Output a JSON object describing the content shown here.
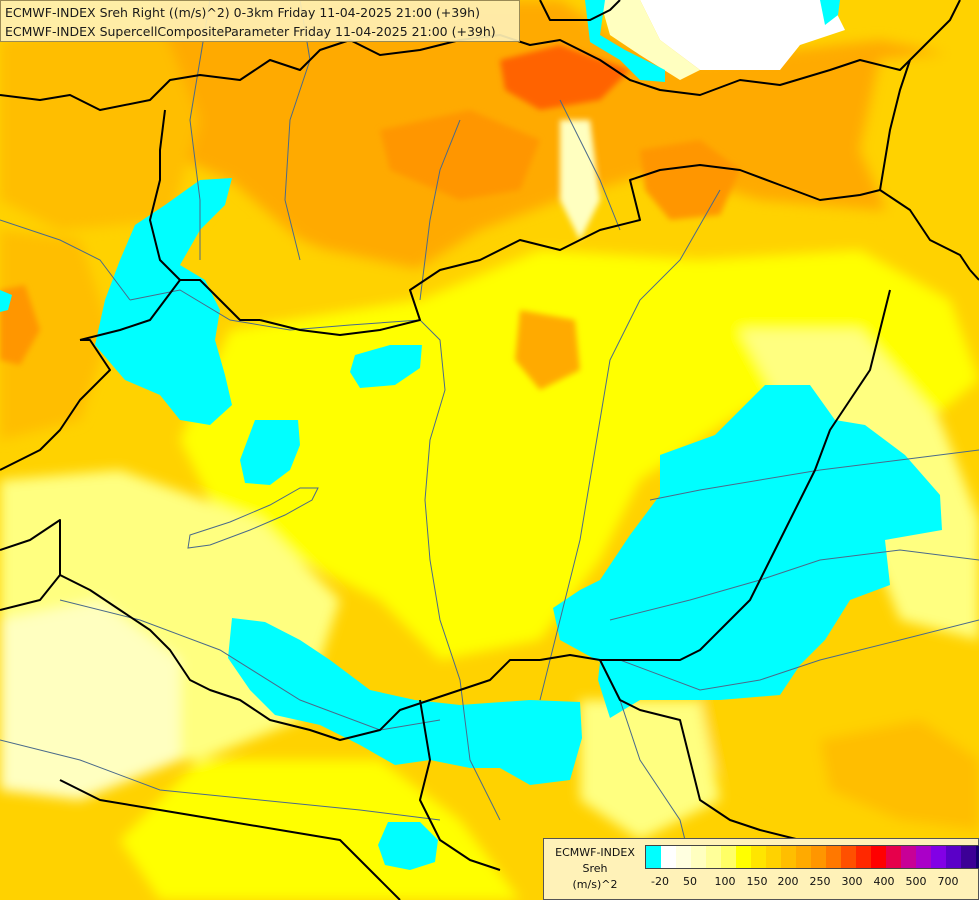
{
  "header": {
    "line1": "ECMWF-INDEX Sreh Right ((m/s)^2) 0-3km Friday 11-04-2025 21:00 (+39h)",
    "line2": "ECMWF-INDEX SupercellCompositeParameter Friday 11-04-2025 21:00 (+39h)"
  },
  "legend": {
    "title_line1": "ECMWF-INDEX",
    "title_line2": "Sreh",
    "title_line3": "(m/s)^2",
    "swatch_colors": [
      "#00ffff",
      "#ffffff",
      "#ffffe0",
      "#ffffc0",
      "#ffff99",
      "#ffff66",
      "#ffff00",
      "#ffe500",
      "#ffd200",
      "#ffbe00",
      "#ffaa00",
      "#ff9600",
      "#ff7800",
      "#ff5000",
      "#ff2800",
      "#ff0000",
      "#e6004b",
      "#c80096",
      "#aa00c8",
      "#8200e6",
      "#5a00c8",
      "#3c0096",
      "#14006e"
    ],
    "tick_labels": [
      "-20",
      "50",
      "100",
      "150",
      "200",
      "250",
      "300",
      "400",
      "500",
      "700"
    ]
  },
  "palette": {
    "cyan": "#00ffff",
    "pale": "#ffffc0",
    "light_yellow": "#ffff80",
    "yellow": "#ffff00",
    "gold": "#ffd200",
    "orange_light": "#ffbe00",
    "orange": "#ffaa00",
    "orange_dark": "#ff9600",
    "red_orange": "#ff6400",
    "white": "#ffffff",
    "border_color": "#000000",
    "river_color": "#4a6a8a"
  }
}
